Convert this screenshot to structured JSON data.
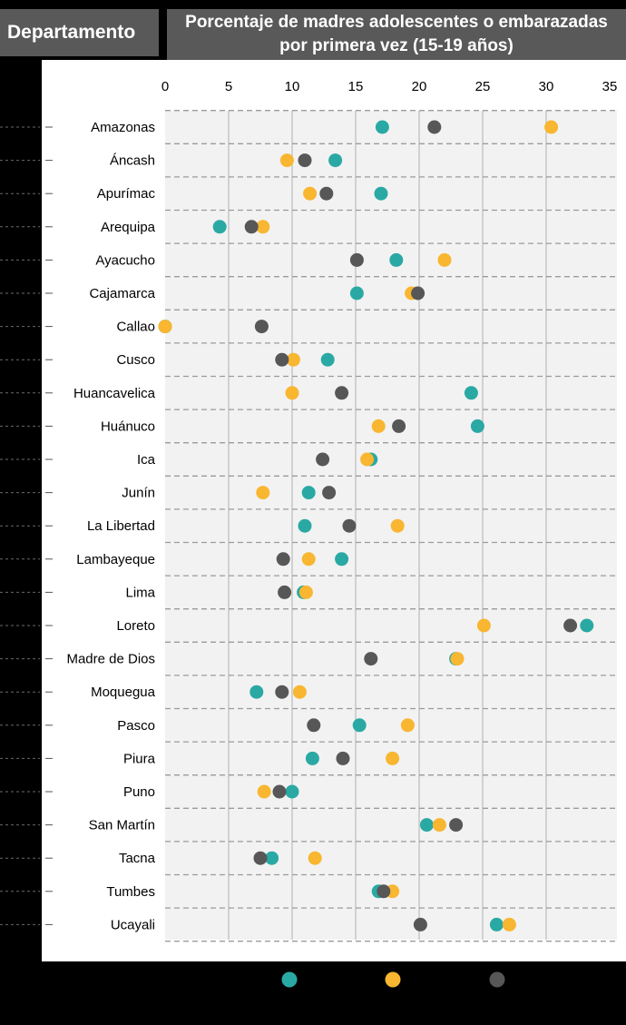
{
  "header": {
    "left_title": "Departamento",
    "title": "Porcentaje de madres adolescentes o embarazadas por primera vez (15-19 años)"
  },
  "colors": {
    "series_teal": "#2aa9a4",
    "series_yellow": "#f8b631",
    "series_gray": "#575757",
    "plot_bg": "#f2f2f2",
    "grid": "#9b9b9b"
  },
  "chart_data": {
    "type": "scatter",
    "title": "Porcentaje de madres adolescentes o embarazadas por primera vez (15-19 años)",
    "xlabel": "",
    "ylabel": "Departamento",
    "xlim": [
      0,
      35
    ],
    "xticks": [
      0,
      5,
      10,
      15,
      20,
      25,
      30,
      35
    ],
    "grid": "vertical dashed and horizontal dashed",
    "legend": "bottom (markers only)",
    "categories": [
      "Amazonas",
      "Áncash",
      "Apurímac",
      "Arequipa",
      "Ayacucho",
      "Cajamarca",
      "Callao",
      "Cusco",
      "Huancavelica",
      "Huánuco",
      "Ica",
      "Junín",
      "La Libertad",
      "Lambayeque",
      "Lima",
      "Loreto",
      "Madre de Dios",
      "Moquegua",
      "Pasco",
      "Piura",
      "Puno",
      "San Martín",
      "Tacna",
      "Tumbes",
      "Ucayali"
    ],
    "series": [
      {
        "color": "#2aa9a4",
        "values": [
          17.1,
          13.4,
          17.0,
          4.3,
          18.2,
          15.1,
          0.0,
          12.8,
          24.1,
          24.6,
          16.2,
          11.3,
          11.0,
          13.9,
          10.9,
          33.2,
          22.9,
          7.2,
          15.3,
          11.6,
          10.0,
          20.6,
          8.4,
          16.8,
          26.1
        ]
      },
      {
        "color": "#f8b631",
        "values": [
          30.4,
          9.6,
          11.4,
          7.7,
          22.0,
          19.4,
          0.0,
          10.1,
          10.0,
          16.8,
          15.9,
          7.7,
          18.3,
          11.3,
          11.1,
          25.1,
          23.0,
          10.6,
          19.1,
          17.9,
          7.8,
          21.6,
          11.8,
          17.9,
          27.1
        ]
      },
      {
        "color": "#575757",
        "values": [
          21.2,
          11.0,
          12.7,
          6.8,
          15.1,
          19.9,
          7.6,
          9.2,
          13.9,
          18.4,
          12.4,
          12.9,
          14.5,
          9.3,
          9.4,
          31.9,
          16.2,
          9.2,
          11.7,
          14.0,
          9.0,
          22.9,
          7.5,
          17.2,
          20.1
        ]
      }
    ]
  }
}
